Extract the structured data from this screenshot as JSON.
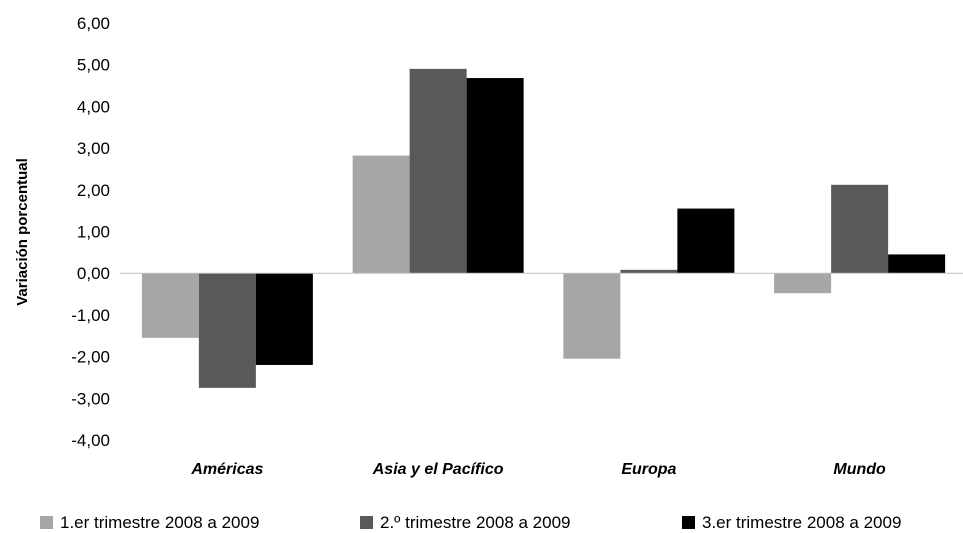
{
  "chart_data": {
    "type": "bar",
    "title": "",
    "xlabel": "",
    "ylabel": "Variación porcentual",
    "ylim": [
      -4,
      6
    ],
    "ytick_step": 1,
    "ytick_labels": [
      "-4,00",
      "-3,00",
      "-2,00",
      "-1,00",
      "0,00",
      "1,00",
      "2,00",
      "3,00",
      "4,00",
      "5,00",
      "6,00"
    ],
    "grid": false,
    "legend_position": "bottom",
    "categories": [
      "Américas",
      "Asia y el Pacífico",
      "Europa",
      "Mundo"
    ],
    "series": [
      {
        "name": "1.er trimestre 2008 a 2009",
        "color": "#a6a6a6",
        "values": [
          -1.55,
          2.82,
          -2.05,
          -0.48
        ]
      },
      {
        "name": "2.º trimestre 2008 a 2009",
        "color": "#595959",
        "values": [
          -2.75,
          4.9,
          0.08,
          2.12
        ]
      },
      {
        "name": "3.er trimestre 2008 a 2009",
        "color": "#000000",
        "values": [
          -2.2,
          4.68,
          1.55,
          0.45
        ]
      }
    ]
  }
}
